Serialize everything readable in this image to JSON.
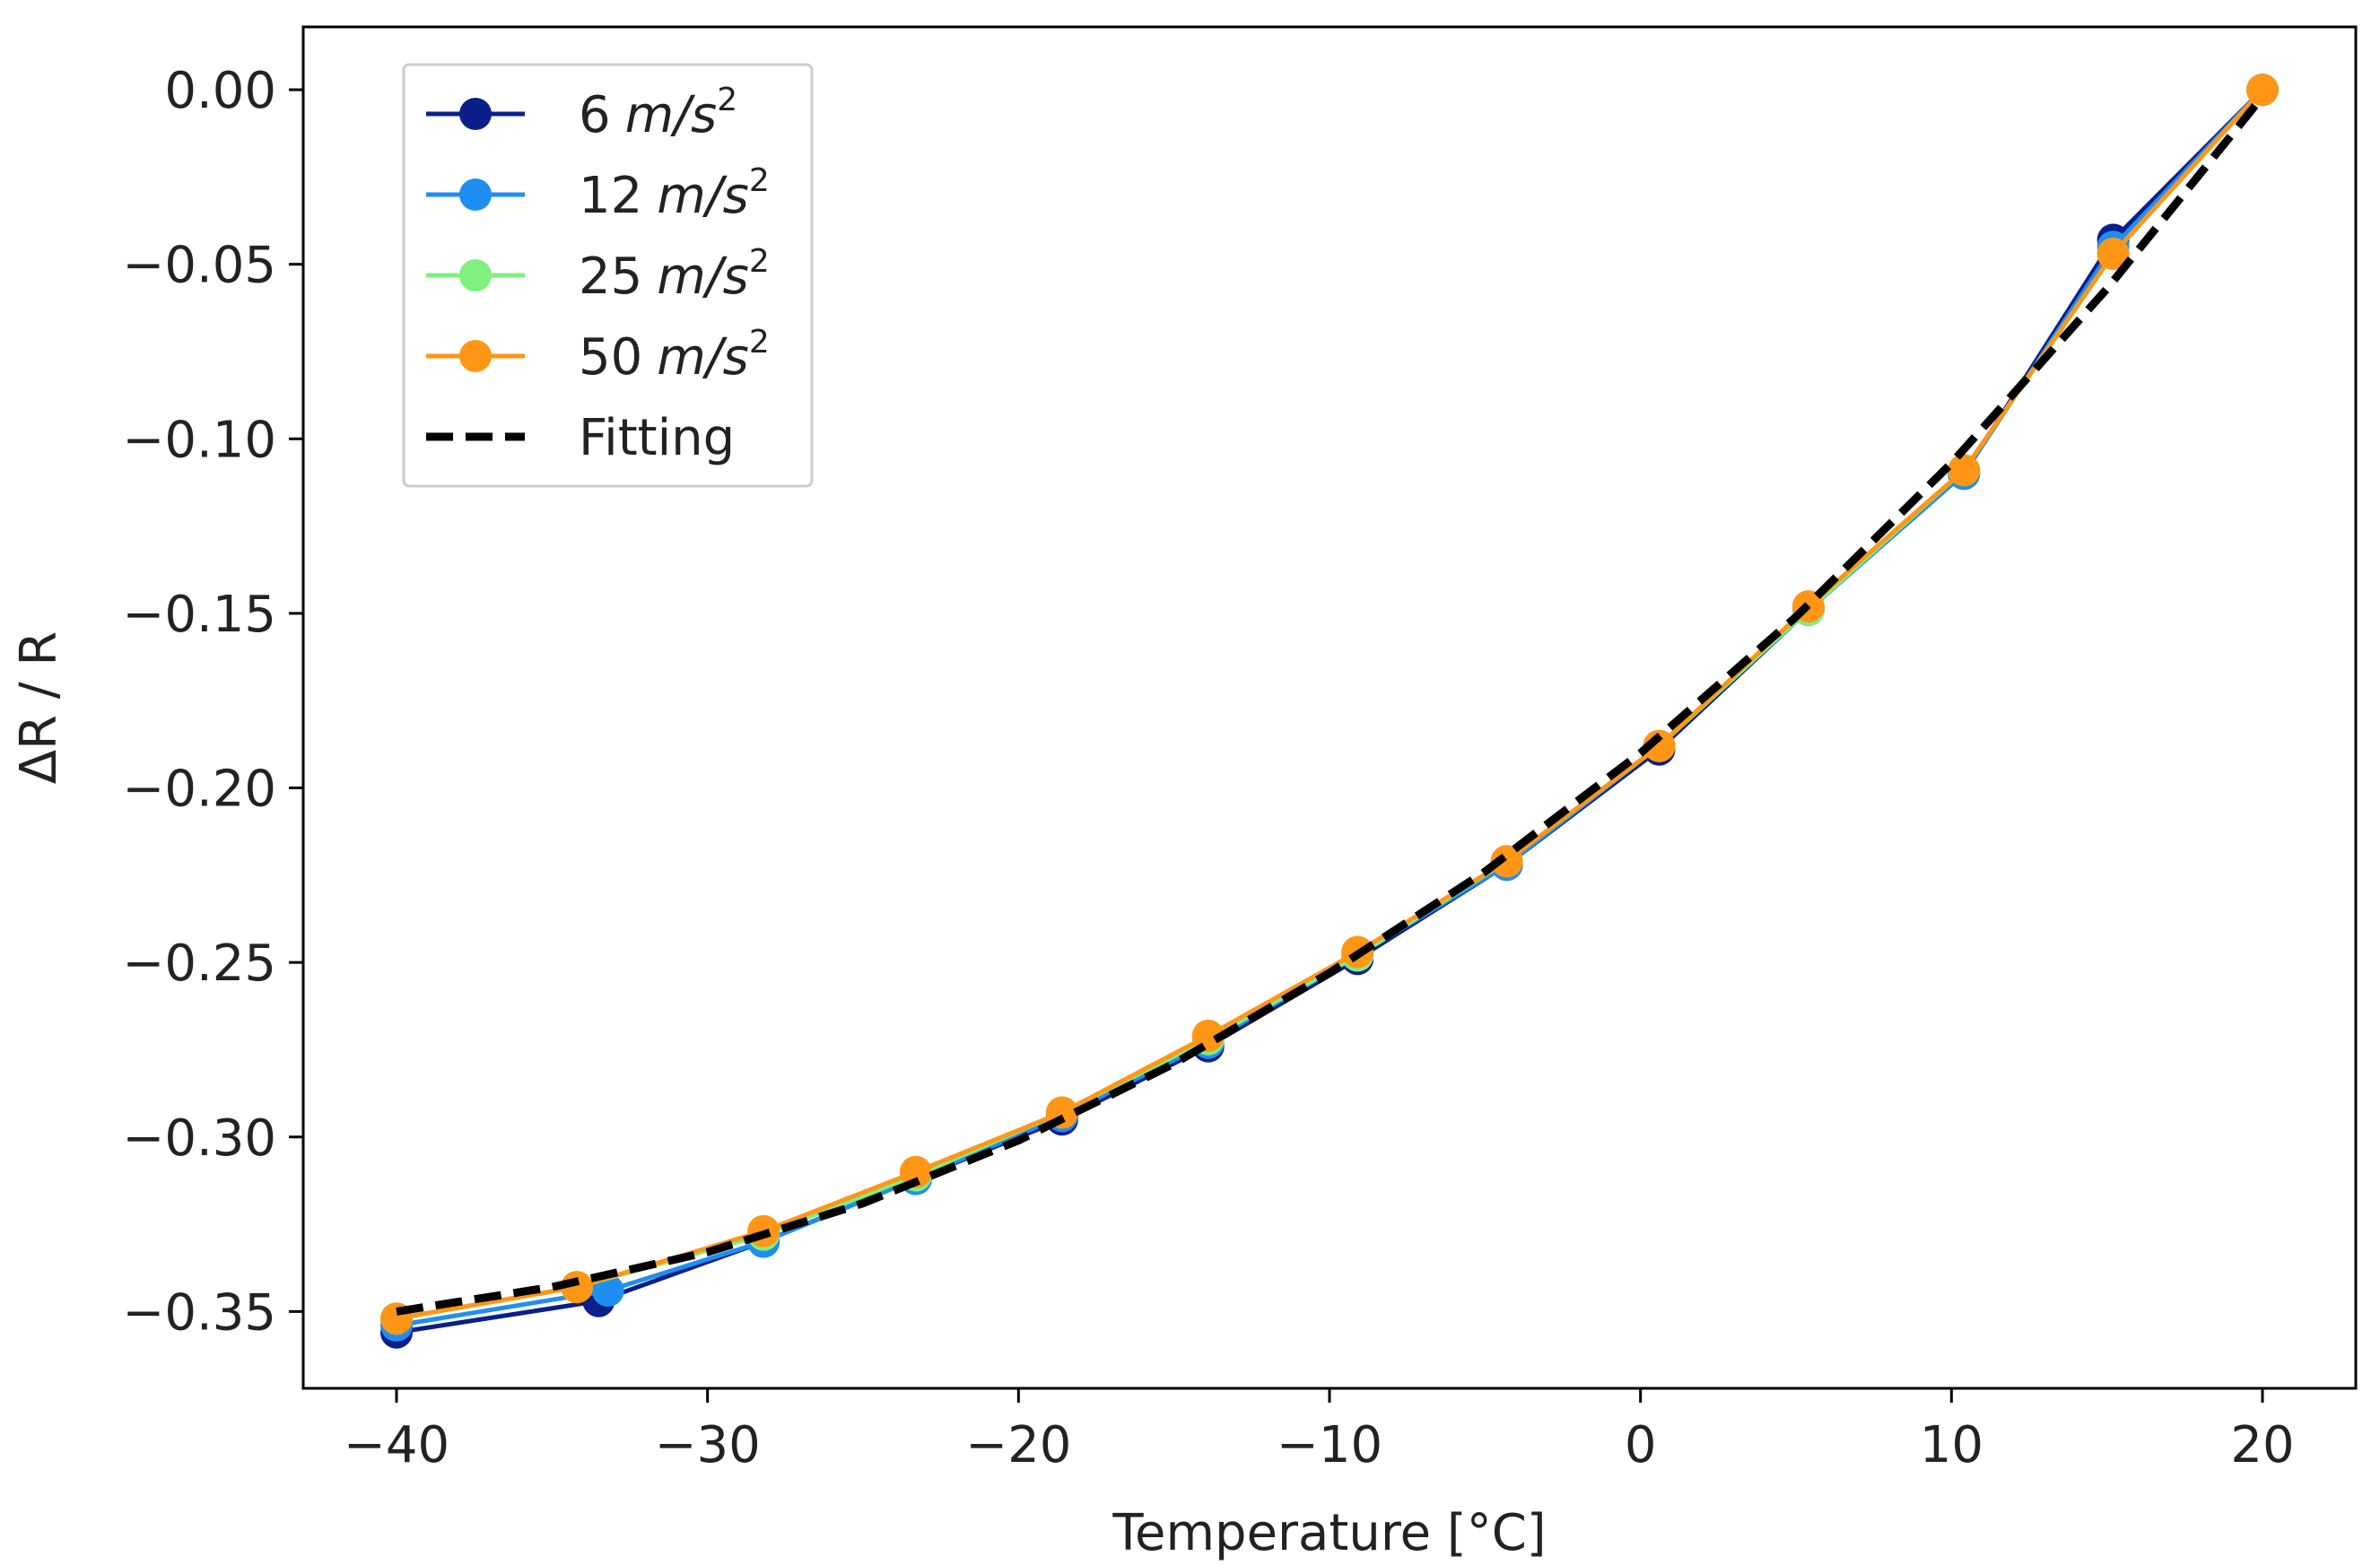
{
  "chart_data": {
    "type": "line",
    "title": "",
    "xlabel": "Temperature [°C]",
    "ylabel": "ΔR / R",
    "xlim": [
      -43,
      23
    ],
    "ylim": [
      -0.372,
      0.018
    ],
    "xticks": [
      -40,
      -30,
      -20,
      -10,
      0,
      10,
      20
    ],
    "yticks": [
      0.0,
      -0.05,
      -0.1,
      -0.15,
      -0.2,
      -0.25,
      -0.3,
      -0.35
    ],
    "xtick_labels": [
      "−40",
      "−30",
      "−20",
      "−10",
      "0",
      "10",
      "20"
    ],
    "ytick_labels": [
      "0.00",
      "−0.05",
      "−0.10",
      "−0.15",
      "−0.20",
      "−0.25",
      "−0.30",
      "−0.35"
    ],
    "grid": false,
    "legend_position": "top-left",
    "series": [
      {
        "name": "6",
        "unit": "m/s",
        "exponent": "2",
        "color": "#0b1f8a",
        "style": "line-marker",
        "x": [
          -40,
          -33.5,
          -28.2,
          -23.3,
          -18.6,
          -13.9,
          -9.1,
          -4.3,
          0.6,
          5.4,
          10.4,
          15.2,
          20
        ],
        "y": [
          -0.356,
          -0.347,
          -0.33,
          -0.312,
          -0.295,
          -0.274,
          -0.249,
          -0.222,
          -0.189,
          -0.149,
          -0.11,
          -0.043,
          0.0
        ]
      },
      {
        "name": "12",
        "unit": "m/s",
        "exponent": "2",
        "color": "#1f8ef1",
        "style": "line-marker",
        "x": [
          -40,
          -33.2,
          -28.2,
          -23.3,
          -18.6,
          -13.9,
          -9.1,
          -4.3,
          0.6,
          5.4,
          10.4,
          15.2,
          20
        ],
        "y": [
          -0.354,
          -0.344,
          -0.33,
          -0.312,
          -0.294,
          -0.273,
          -0.248,
          -0.222,
          -0.188,
          -0.149,
          -0.11,
          -0.045,
          0.0
        ]
      },
      {
        "name": "25",
        "unit": "m/s",
        "exponent": "2",
        "color": "#7ef07e",
        "style": "line-marker",
        "x": [
          -40,
          -34.2,
          -28.2,
          -23.3,
          -18.6,
          -13.9,
          -9.1,
          -4.3,
          0.6,
          5.4,
          10.4,
          15.2,
          20
        ],
        "y": [
          -0.352,
          -0.343,
          -0.328,
          -0.311,
          -0.293,
          -0.272,
          -0.248,
          -0.221,
          -0.188,
          -0.149,
          -0.109,
          -0.047,
          0.0
        ]
      },
      {
        "name": "50",
        "unit": "m/s",
        "exponent": "2",
        "color": "#ff9616",
        "style": "line-marker",
        "x": [
          -40,
          -34.2,
          -28.2,
          -23.3,
          -18.6,
          -13.9,
          -9.1,
          -4.3,
          0.6,
          5.4,
          10.4,
          15.2,
          20
        ],
        "y": [
          -0.352,
          -0.343,
          -0.327,
          -0.31,
          -0.293,
          -0.271,
          -0.247,
          -0.221,
          -0.188,
          -0.148,
          -0.109,
          -0.047,
          0.0
        ]
      },
      {
        "name": "Fitting",
        "color": "#000000",
        "style": "dashed",
        "x": [
          -40,
          -35,
          -30,
          -25,
          -20,
          -15,
          -10,
          -5,
          0,
          5,
          10,
          15,
          20
        ],
        "y": [
          -0.35,
          -0.343,
          -0.333,
          -0.319,
          -0.301,
          -0.279,
          -0.253,
          -0.224,
          -0.19,
          -0.151,
          -0.107,
          -0.057,
          -0.002
        ]
      }
    ]
  }
}
